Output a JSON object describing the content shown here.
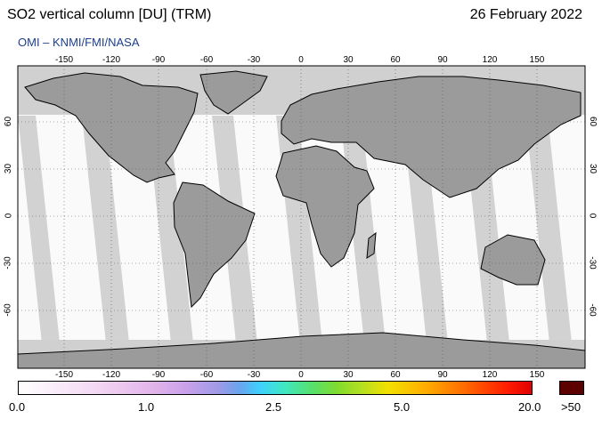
{
  "header": {
    "title": "SO2 vertical column [DU] (TRM)",
    "date": "26 February 2022",
    "source": "OMI  –  KNMI/FMI/NASA"
  },
  "map": {
    "lon_ticks": [
      "-150",
      "-120",
      "-90",
      "-60",
      "-30",
      "0",
      "30",
      "60",
      "90",
      "120",
      "150"
    ],
    "lat_ticks": [
      "60",
      "30",
      "0",
      "-30",
      "-60"
    ],
    "colors": {
      "land": "#9a9a9a",
      "no_data": "#d0d0d0",
      "ocean_data": "#ffffff",
      "grid": "#555555"
    }
  },
  "colorbar": {
    "labels": [
      "0.0",
      "1.0",
      "2.5",
      "5.0",
      "20.0"
    ],
    "max_label": ">50"
  }
}
